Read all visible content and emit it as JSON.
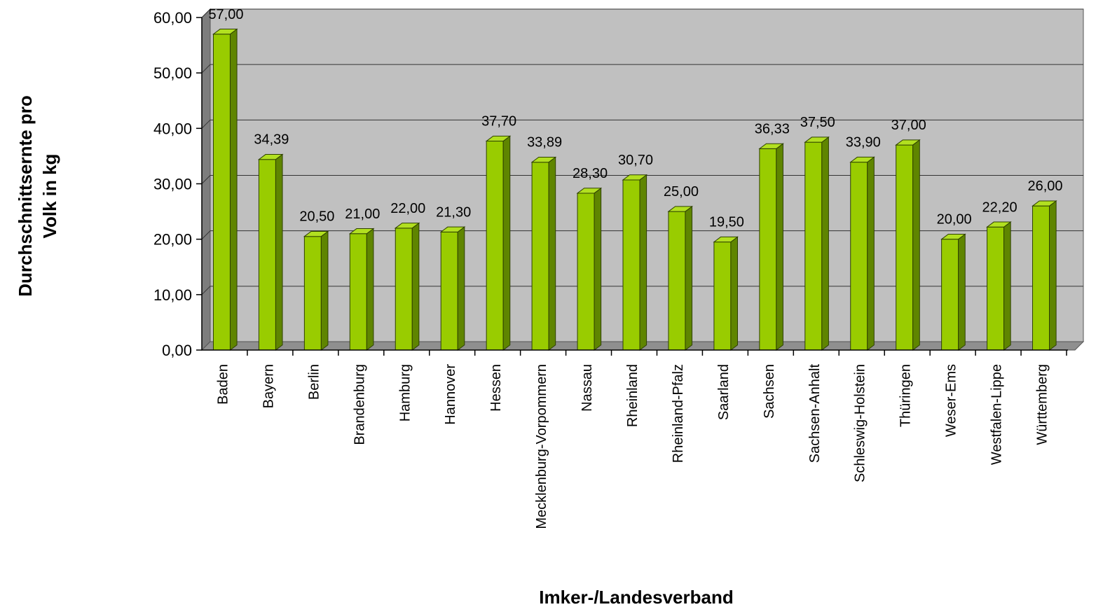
{
  "chart_data": {
    "type": "bar",
    "title": "",
    "xlabel": "Imker-/Landesverband",
    "ylabel_line1": "Durchschnittsernte pro",
    "ylabel_line2": "Volk in kg",
    "ylim": [
      0,
      60
    ],
    "yticks": [
      "0,00",
      "10,00",
      "20,00",
      "30,00",
      "40,00",
      "50,00",
      "60,00"
    ],
    "grid": true,
    "legend": "none",
    "categories": [
      "Baden",
      "Bayern",
      "Berlin",
      "Brandenburg",
      "Hamburg",
      "Hannover",
      "Hessen",
      "Mecklenburg-Vorpommern",
      "Nassau",
      "Rheinland",
      "Rheinland-Pfalz",
      "Saarland",
      "Sachsen",
      "Sachsen-Anhalt",
      "Schleswig-Holstein",
      "Thüringen",
      "Weser-Ems",
      "Westfalen-Lippe",
      "Württemberg"
    ],
    "values": [
      57.0,
      34.39,
      20.5,
      21.0,
      22.0,
      21.3,
      37.7,
      33.89,
      28.3,
      30.7,
      25.0,
      19.5,
      36.33,
      37.5,
      33.9,
      37.0,
      20.0,
      22.2,
      26.0
    ],
    "value_labels": [
      "57,00",
      "34,39",
      "20,50",
      "21,00",
      "22,00",
      "21,30",
      "37,70",
      "33,89",
      "28,30",
      "30,70",
      "25,00",
      "19,50",
      "36,33",
      "37,50",
      "33,90",
      "37,00",
      "20,00",
      "22,20",
      "26,00"
    ],
    "colors": {
      "bar_front": "#99cc00",
      "bar_side": "#5f8500",
      "bar_top": "#b2e020",
      "bar_stroke": "#2e4000",
      "wall": "#c0c0c0",
      "side_wall": "#7d7d7d",
      "floor": "#8f8f8f"
    }
  }
}
